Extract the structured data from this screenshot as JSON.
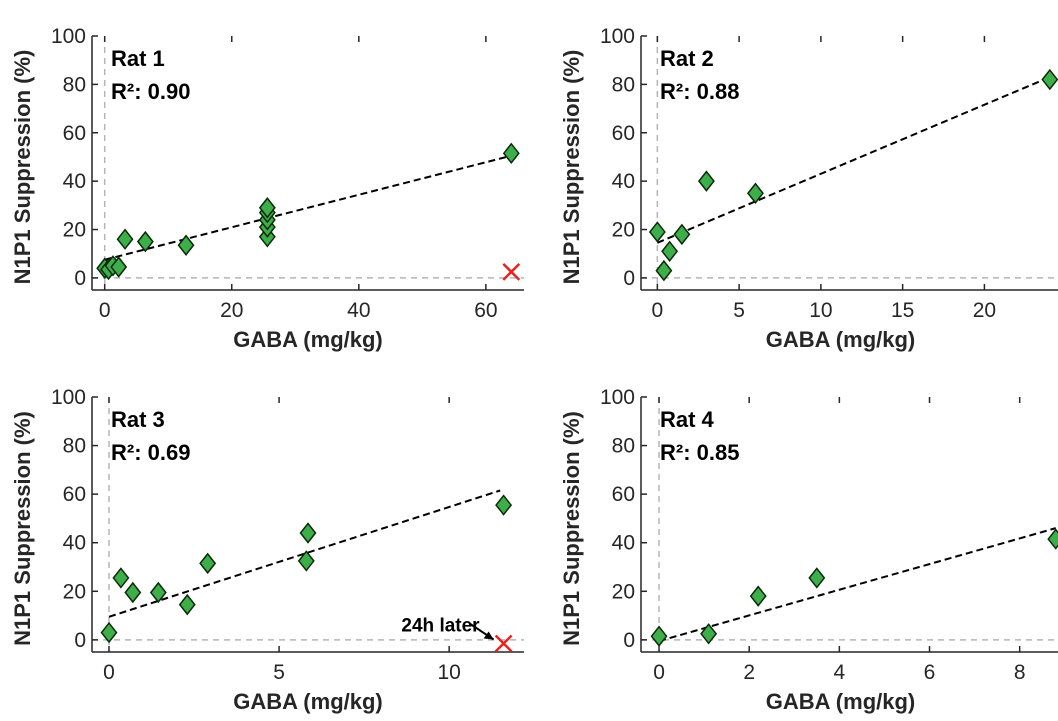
{
  "colors": {
    "marker_fill": "#3dae49",
    "marker_stroke": "#0a2a0a",
    "excluded": "#e8231f",
    "fit_line": "#000000",
    "zero_line": "#b5b5b5",
    "axis": "#262626"
  },
  "chart_data": [
    {
      "type": "scatter",
      "title": "Rat 1",
      "r2_label": "R²: 0.90",
      "xlabel": "GABA (mg/kg)",
      "ylabel": "N1P1 Suppression (%)",
      "xlim": [
        -2,
        66
      ],
      "ylim": [
        -5,
        100
      ],
      "xticks": [
        0,
        20,
        40,
        60
      ],
      "yticks": [
        0,
        20,
        40,
        60,
        80,
        100
      ],
      "points": [
        [
          0,
          4
        ],
        [
          0.6,
          3.5
        ],
        [
          1.3,
          5
        ],
        [
          2.2,
          4.5
        ],
        [
          3.2,
          16
        ],
        [
          6.4,
          15
        ],
        [
          12.8,
          13.5
        ],
        [
          25.6,
          17
        ],
        [
          25.6,
          21
        ],
        [
          25.6,
          24
        ],
        [
          25.6,
          27
        ],
        [
          25.6,
          29
        ],
        [
          64,
          51.5
        ]
      ],
      "fit": [
        [
          0,
          7.5
        ],
        [
          64,
          50.5
        ]
      ],
      "excluded_points": [
        [
          64,
          2.5
        ]
      ],
      "annotation": null
    },
    {
      "type": "scatter",
      "title": "Rat 2",
      "r2_label": "R²: 0.88",
      "xlabel": "GABA (mg/kg)",
      "ylabel": "N1P1 Suppression (%)",
      "xlim": [
        -1,
        24.5
      ],
      "ylim": [
        -5,
        100
      ],
      "xticks": [
        0,
        5,
        10,
        15,
        20
      ],
      "yticks": [
        0,
        20,
        40,
        60,
        80,
        100
      ],
      "points": [
        [
          0,
          19
        ],
        [
          0.4,
          3
        ],
        [
          0.75,
          11
        ],
        [
          1.5,
          18
        ],
        [
          3,
          40
        ],
        [
          6,
          35
        ],
        [
          24,
          82
        ]
      ],
      "fit": [
        [
          0,
          14.5
        ],
        [
          24,
          83
        ]
      ],
      "excluded_points": [],
      "annotation": null
    },
    {
      "type": "scatter",
      "title": "Rat 3",
      "r2_label": "R²: 0.69",
      "xlabel": "GABA (mg/kg)",
      "ylabel": "N1P1 Suppression (%)",
      "xlim": [
        -0.5,
        12.2
      ],
      "ylim": [
        -5,
        100
      ],
      "xticks": [
        0,
        5,
        10
      ],
      "yticks": [
        0,
        20,
        40,
        60,
        80,
        100
      ],
      "points": [
        [
          0,
          3
        ],
        [
          0.35,
          25.5
        ],
        [
          0.7,
          19.5
        ],
        [
          1.45,
          19.5
        ],
        [
          2.3,
          14.5
        ],
        [
          2.9,
          31.5
        ],
        [
          5.8,
          32.5
        ],
        [
          5.85,
          44
        ],
        [
          11.6,
          55.5
        ]
      ],
      "fit": [
        [
          0,
          9.5
        ],
        [
          11.5,
          61.5
        ]
      ],
      "excluded_points": [
        [
          11.6,
          -1.5
        ]
      ],
      "annotation": "24h later"
    },
    {
      "type": "scatter",
      "title": "Rat 4",
      "r2_label": "R²: 0.85",
      "xlabel": "GABA (mg/kg)",
      "ylabel": "N1P1 Suppression (%)",
      "xlim": [
        -0.4,
        8.85
      ],
      "ylim": [
        -5,
        100
      ],
      "xticks": [
        0,
        2,
        4,
        6,
        8
      ],
      "yticks": [
        0,
        20,
        40,
        60,
        80,
        100
      ],
      "points": [
        [
          0,
          1.5
        ],
        [
          1.1,
          2.5
        ],
        [
          2.2,
          18
        ],
        [
          3.5,
          25.5
        ],
        [
          8.8,
          41.5
        ]
      ],
      "fit": [
        [
          0,
          -0.5
        ],
        [
          8.8,
          46
        ]
      ],
      "excluded_points": [],
      "annotation": null
    }
  ]
}
